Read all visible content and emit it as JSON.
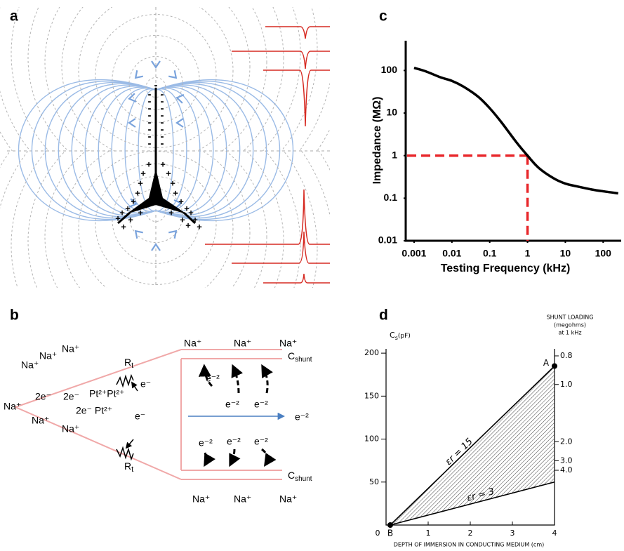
{
  "panels": {
    "a": {
      "label": "a",
      "charges": {
        "minus": "-",
        "plus": "+"
      }
    },
    "b": {
      "label": "b",
      "texts": [
        "Na⁺",
        "Na⁺",
        "Na⁺",
        "Na⁺",
        "2e⁻",
        "2e⁻",
        "Pt²⁺Pt²⁺",
        "e⁻",
        "2e⁻ Pt²⁺",
        "Na⁺",
        "Na⁺",
        "e⁻",
        "Na⁺",
        "Na⁺",
        "Na⁺",
        "e⁻²",
        "e⁻²",
        "e⁻²",
        "e⁻²",
        "e⁻²",
        "e⁻²",
        "e⁻²",
        "Na⁺",
        "Na⁺",
        "Na⁺"
      ],
      "r_t": {
        "main": "R",
        "sub": "t"
      },
      "c_shunt": {
        "main": "C",
        "sub": "shunt"
      }
    }
  },
  "chart_data": [
    {
      "type": "line",
      "panel_label": "c",
      "x": [
        0.001,
        0.002,
        0.005,
        0.01,
        0.02,
        0.05,
        0.1,
        0.2,
        0.5,
        1,
        2,
        5,
        10,
        20,
        50,
        100,
        250
      ],
      "series": [
        {
          "color": "#000000",
          "values": [
            115,
            96,
            69,
            57,
            42,
            24,
            13,
            6.2,
            2.1,
            1.0,
            0.51,
            0.29,
            0.22,
            0.19,
            0.16,
            0.145,
            0.13
          ]
        }
      ],
      "xscale": "log",
      "yscale": "log",
      "xlim": [
        0.0006,
        300
      ],
      "ylim": [
        0.01,
        500
      ],
      "xticks": [
        0.001,
        0.01,
        0.1,
        1,
        10,
        100
      ],
      "yticks": [
        0.01,
        0.1,
        1,
        10,
        100
      ],
      "x_label": "Testing Frequency (kHz)",
      "y_label": "Impedance (MΩ)",
      "reference": {
        "x": 1,
        "y": 1,
        "color": "#e8262a"
      }
    },
    {
      "type": "line",
      "panel_label": "d",
      "series": [
        {
          "name": "εr = 15",
          "color": "#000000",
          "x": [
            0.1,
            4
          ],
          "values": [
            0,
            185
          ]
        },
        {
          "name": "εr = 3",
          "color": "#000000",
          "x": [
            0.1,
            4
          ],
          "values": [
            0,
            50
          ]
        }
      ],
      "xlim": [
        0,
        4
      ],
      "ylim": [
        0,
        205
      ],
      "xticks": [
        0,
        1,
        2,
        3,
        4
      ],
      "yticks": [
        50,
        100,
        150,
        200
      ],
      "y2scale": "reciprocal",
      "y2lim": [
        4,
        0.8
      ],
      "y2ticks": [
        0.8,
        {
          "value": 1,
          "label": "1.0"
        },
        {
          "value": 2,
          "label": "2.0"
        },
        {
          "value": 3,
          "label": "3.0"
        },
        {
          "value": 4,
          "label": "4.0"
        }
      ],
      "x_label": "DEPTH OF IMMERSION IN CONDUCTING MEDIUM (cm)",
      "y_label": {
        "main": "C",
        "sub": "s",
        "unit": "(pF)"
      },
      "y2_label": [
        "SHUNT LOADING",
        "(megohms)",
        "at 1 kHz"
      ],
      "points": [
        {
          "label": "A",
          "x": 4,
          "y": 185
        },
        {
          "label": "B",
          "x": 0.1,
          "y": 0
        }
      ],
      "hatch": true
    }
  ]
}
